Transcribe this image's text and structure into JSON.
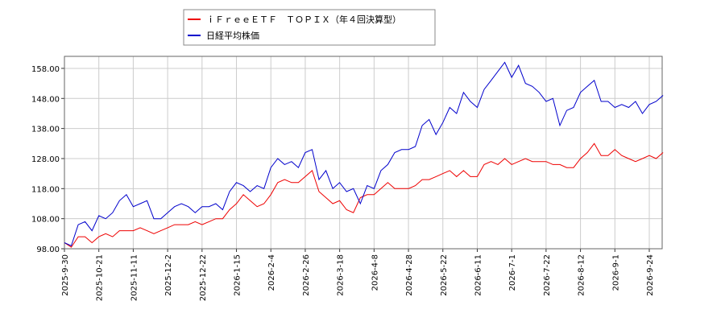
{
  "chart_data": {
    "type": "line",
    "categories": [
      "2025-9-30",
      null,
      null,
      null,
      null,
      "2025-10-21",
      null,
      null,
      null,
      null,
      "2025-11-11",
      null,
      null,
      null,
      null,
      "2025-12-2",
      null,
      null,
      null,
      null,
      "2025-12-22",
      null,
      null,
      null,
      null,
      "2026-1-15",
      null,
      null,
      null,
      null,
      "2026-2-4",
      null,
      null,
      null,
      null,
      "2026-2-26",
      null,
      null,
      null,
      null,
      "2026-3-18",
      null,
      null,
      null,
      null,
      "2026-4-8",
      null,
      null,
      null,
      null,
      "2026-4-28",
      null,
      null,
      null,
      null,
      "2026-5-22",
      null,
      null,
      null,
      null,
      "2026-6-11",
      null,
      null,
      null,
      null,
      "2026-7-1",
      null,
      null,
      null,
      null,
      "2026-7-22",
      null,
      null,
      null,
      null,
      "2026-8-12",
      null,
      null,
      null,
      null,
      "2026-9-1",
      null,
      null,
      null,
      null,
      "2026-9-24",
      null,
      null
    ],
    "series": [
      {
        "name": "ｉＦｒｅｅＥＴＦ　ＴＯＰＩＸ（年４回決算型）",
        "color": "#ee0000",
        "values": [
          100,
          98.5,
          102,
          102,
          100,
          102,
          103,
          102,
          104,
          104,
          104,
          105,
          104,
          103,
          104,
          105,
          106,
          106,
          106,
          107,
          106,
          107,
          108,
          108,
          111,
          113,
          116,
          114,
          112,
          113,
          116,
          120,
          121,
          120,
          120,
          122,
          124,
          117,
          115,
          113,
          114,
          111,
          110,
          115,
          116,
          116,
          118,
          120,
          118,
          118,
          118,
          119,
          121,
          121,
          122,
          123,
          124,
          122,
          124,
          122,
          122,
          126,
          127,
          126,
          128,
          126,
          127,
          128,
          127,
          127,
          127,
          126,
          126,
          125,
          125,
          128,
          130,
          133,
          129,
          129,
          131,
          129,
          128,
          127,
          128,
          129,
          128,
          130
        ]
      },
      {
        "name": "日経平均株価",
        "color": "#0000cc",
        "values": [
          100,
          99,
          106,
          107,
          104,
          109,
          108,
          110,
          114,
          116,
          112,
          113,
          114,
          108,
          108,
          110,
          112,
          113,
          112,
          110,
          112,
          112,
          113,
          111,
          117,
          120,
          119,
          117,
          119,
          118,
          125,
          128,
          126,
          127,
          125,
          130,
          131,
          121,
          124,
          118,
          120,
          117,
          118,
          113,
          119,
          118,
          124,
          126,
          130,
          131,
          131,
          132,
          139,
          141,
          136,
          140,
          145,
          143,
          150,
          147,
          145,
          151,
          154,
          157,
          160,
          155,
          159,
          153,
          152,
          150,
          147,
          148,
          139,
          144,
          145,
          150,
          152,
          154,
          147,
          147,
          145,
          146,
          145,
          147,
          143,
          146,
          147,
          149
        ]
      }
    ],
    "ylim": [
      98,
      162
    ],
    "yticks": [
      {
        "value": 98,
        "label": "98.00"
      },
      {
        "value": 108,
        "label": "108.00"
      },
      {
        "value": 118,
        "label": "118.00"
      },
      {
        "value": 128,
        "label": "128.00"
      },
      {
        "value": 138,
        "label": "138.00"
      },
      {
        "value": 148,
        "label": "148.00"
      },
      {
        "value": 158,
        "label": "158.00"
      }
    ],
    "grid": true,
    "legend": "top"
  }
}
